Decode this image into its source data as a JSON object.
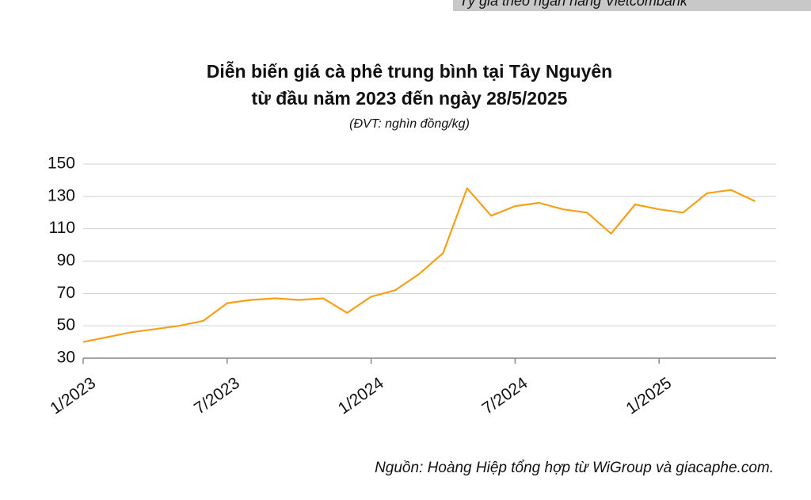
{
  "top_note": "Tỷ giá theo ngân hàng Vietcombank",
  "chart_data": {
    "type": "line",
    "title": "Diễn biến giá cà phê trung bình tại Tây Nguyên",
    "subtitle": "từ đầu năm 2023 đến ngày 28/5/2025",
    "unit_note": "(ĐVT: nghìn đồng/kg)",
    "source": "Nguồn: Hoàng Hiệp tổng hợp từ WiGroup và giacaphe.com.",
    "x": [
      "1/2023",
      "2/2023",
      "3/2023",
      "4/2023",
      "5/2023",
      "6/2023",
      "7/2023",
      "8/2023",
      "9/2023",
      "10/2023",
      "11/2023",
      "12/2023",
      "1/2024",
      "2/2024",
      "3/2024",
      "4/2024",
      "5/2024",
      "6/2024",
      "7/2024",
      "8/2024",
      "9/2024",
      "10/2024",
      "11/2024",
      "12/2024",
      "1/2025",
      "2/2025",
      "3/2025",
      "4/2025",
      "5/2025"
    ],
    "series": [
      {
        "color": "#f5a01a",
        "values": [
          40,
          43,
          46,
          48,
          50,
          53,
          64,
          66,
          67,
          66,
          67,
          58,
          68,
          72,
          82,
          95,
          135,
          118,
          124,
          126,
          122,
          120,
          107,
          125,
          122,
          120,
          132,
          134,
          127
        ]
      }
    ],
    "xticks": [
      "1/2023",
      "7/2023",
      "1/2024",
      "7/2024",
      "1/2025"
    ],
    "ylim": [
      30,
      150
    ],
    "yticks": [
      30,
      50,
      70,
      90,
      110,
      130,
      150
    ],
    "grid": true
  }
}
